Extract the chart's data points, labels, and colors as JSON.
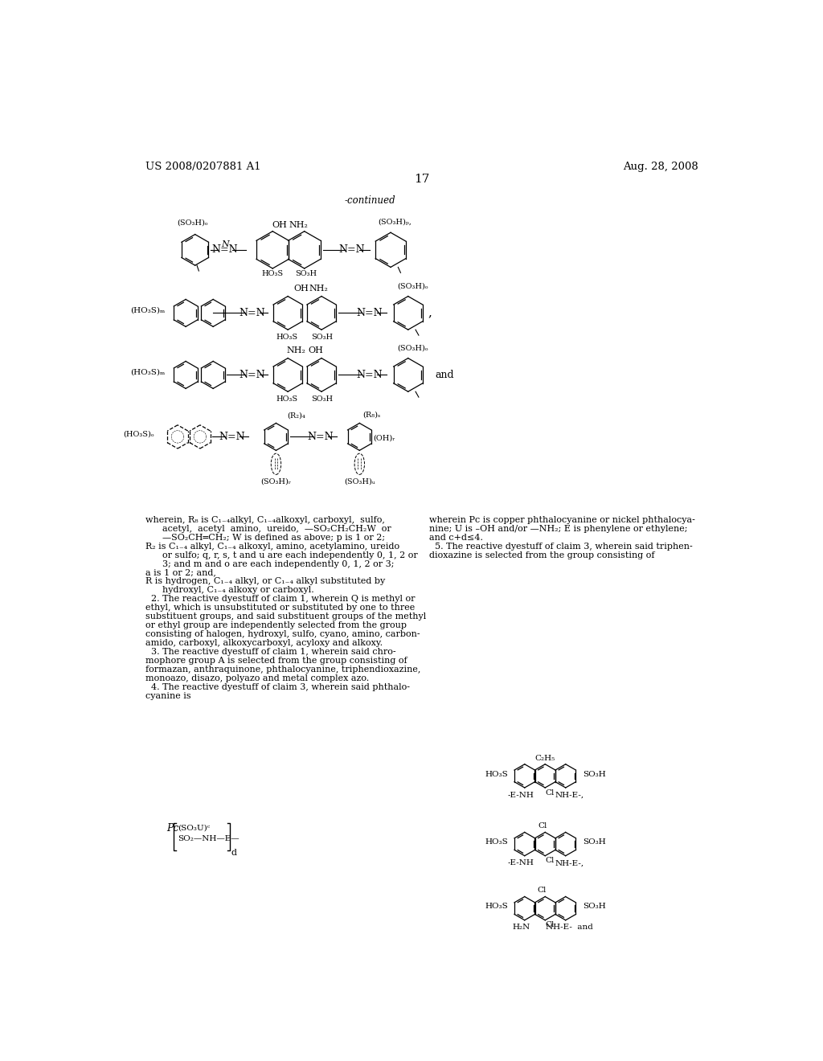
{
  "page_number": "17",
  "patent_number": "US 2008/0207881 A1",
  "patent_date": "Aug. 28, 2008",
  "bg_color": "#ffffff",
  "text_color": "#000000",
  "figsize": [
    10.24,
    13.2
  ],
  "dpi": 100,
  "continued_label": "-continued",
  "body_text_left": [
    "wherein, R₈ is C₁₋₄alkyl, C₁₋₄alkoxyl, carboxyl,  sulfo,",
    "      acetyl,  acetyl  amino,  ureido,  —SO₂CH₂CH₂W  or",
    "      —SO₂CH═CH₂; W is defined as above; p is 1 or 2;",
    "R₂ is C₁₋₄ alkyl, C₁₋₄ alkoxyl, amino, acetylamino, ureido",
    "      or sulfo; q, r, s, t and u are each independently 0, 1, 2 or",
    "      3; and m and o are each independently 0, 1, 2 or 3;",
    "a is 1 or 2; and,",
    "R is hydrogen, C₁₋₄ alkyl, or C₁₋₄ alkyl substituted by",
    "      hydroxyl, C₁₋₄ alkoxy or carboxyl.",
    "  2. The reactive dyestuff of claim 1, wherein Q is methyl or",
    "ethyl, which is unsubstituted or substituted by one to three",
    "substituent groups, and said substituent groups of the methyl",
    "or ethyl group are independently selected from the group",
    "consisting of halogen, hydroxyl, sulfo, cyano, amino, carbon-",
    "amido, carboxyl, alkoxycarboxyl, acyloxy and alkoxy.",
    "  3. The reactive dyestuff of claim 1, wherein said chro-",
    "mophore group A is selected from the group consisting of",
    "formazan, anthraquinone, phthalocyanine, triphendioxazine,",
    "monoazo, disazo, polyazo and metal complex azo.",
    "  4. The reactive dyestuff of claim 3, wherein said phthalo-",
    "cyanine is"
  ],
  "body_text_right": [
    "wherein Pc is copper phthalocyanine or nickel phthalocya-",
    "nine; U is –OH and/or —NH₂; E is phenylene or ethylene;",
    "and c+d≤4.",
    "  5. The reactive dyestuff of claim 3, wherein said triphen-",
    "dioxazine is selected from the group consisting of"
  ]
}
